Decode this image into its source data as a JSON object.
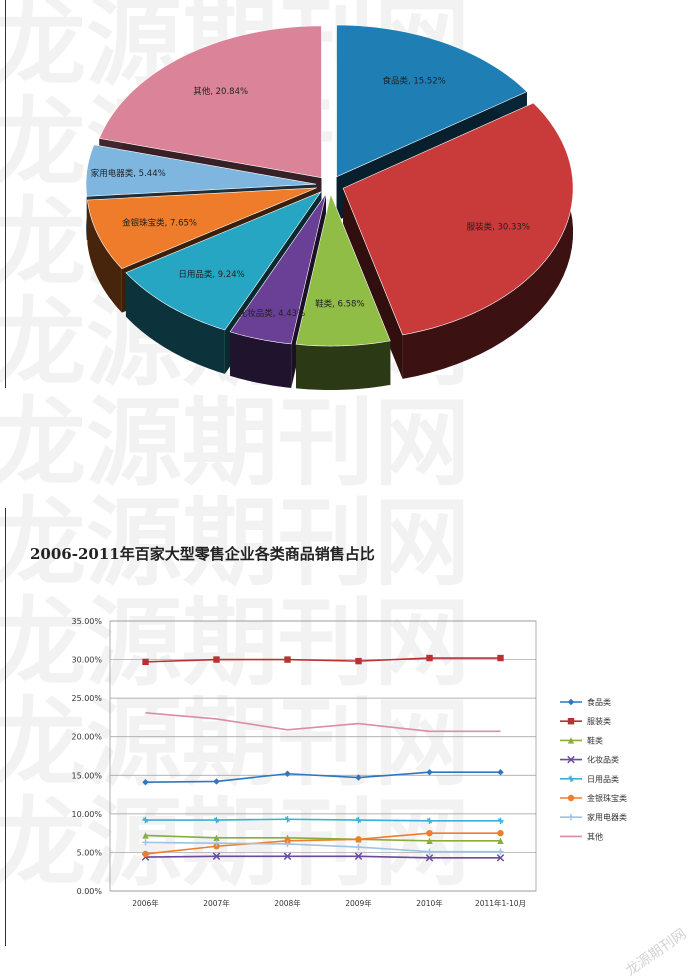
{
  "watermark": {
    "text": "龙源期刊网",
    "corner_text": "龙源期刊网"
  },
  "chart_data": [
    {
      "type": "pie",
      "title": "",
      "slices": [
        {
          "label": "食品类",
          "value": 15.52,
          "display": "食品类, 15.52%",
          "color": "#1f7fb4"
        },
        {
          "label": "服装类",
          "value": 30.33,
          "display": "服装类, 30.33%",
          "color": "#c93a3a"
        },
        {
          "label": "鞋类",
          "value": 6.58,
          "display": "鞋类, 6.58%",
          "color": "#8fbd45"
        },
        {
          "label": "化妆品类",
          "value": 4.43,
          "display": "化妆品类, 4.43%",
          "color": "#6a3f96"
        },
        {
          "label": "日用品类",
          "value": 9.24,
          "display": "日用品类, 9.24%",
          "color": "#27a6c3"
        },
        {
          "label": "金银珠宝类",
          "value": 7.65,
          "display": "金银珠宝类, 7.65%",
          "color": "#ee7c2a"
        },
        {
          "label": "家用电器类",
          "value": 5.44,
          "display": "家用电器类, 5.44%",
          "color": "#7fb6e0"
        },
        {
          "label": "其他",
          "value": 20.84,
          "display": "其他, 20.84%",
          "color": "#db8499"
        }
      ]
    },
    {
      "type": "line",
      "title": "2006-2011年百家大型零售企业各类商品销售占比",
      "categories": [
        "2006年",
        "2007年",
        "2008年",
        "2009年",
        "2010年",
        "2011年1-10月"
      ],
      "ylim": [
        0,
        35
      ],
      "yticks": [
        "0.00%",
        "5.00%",
        "10.00%",
        "15.00%",
        "20.00%",
        "25.00%",
        "30.00%",
        "35.00%"
      ],
      "grid": true,
      "legend_position": "right",
      "series": [
        {
          "name": "食品类",
          "color": "#2e77c0",
          "marker": "diamond",
          "values": [
            14.1,
            14.2,
            15.2,
            14.7,
            15.4,
            15.4
          ]
        },
        {
          "name": "服装类",
          "color": "#b83232",
          "marker": "square",
          "values": [
            29.7,
            30.0,
            30.0,
            29.8,
            30.2,
            30.2
          ]
        },
        {
          "name": "鞋类",
          "color": "#8aac3c",
          "marker": "triangle",
          "values": [
            7.2,
            6.9,
            6.9,
            6.7,
            6.5,
            6.5
          ]
        },
        {
          "name": "化妆品类",
          "color": "#6a4a9c",
          "marker": "x",
          "values": [
            4.4,
            4.5,
            4.5,
            4.5,
            4.3,
            4.3
          ]
        },
        {
          "name": "日用品类",
          "color": "#3ab0d6",
          "marker": "star",
          "values": [
            9.2,
            9.2,
            9.3,
            9.2,
            9.1,
            9.1
          ]
        },
        {
          "name": "金银珠宝类",
          "color": "#ef7d2c",
          "marker": "circle",
          "values": [
            4.8,
            5.8,
            6.5,
            6.7,
            7.5,
            7.5
          ]
        },
        {
          "name": "家用电器类",
          "color": "#9cc3e4",
          "marker": "plus",
          "values": [
            6.3,
            6.2,
            6.1,
            5.7,
            5.1,
            5.1
          ]
        },
        {
          "name": "其他",
          "color": "#d98ea2",
          "marker": "none",
          "values": [
            23.1,
            22.3,
            20.9,
            21.7,
            20.7,
            20.7
          ]
        }
      ]
    }
  ]
}
